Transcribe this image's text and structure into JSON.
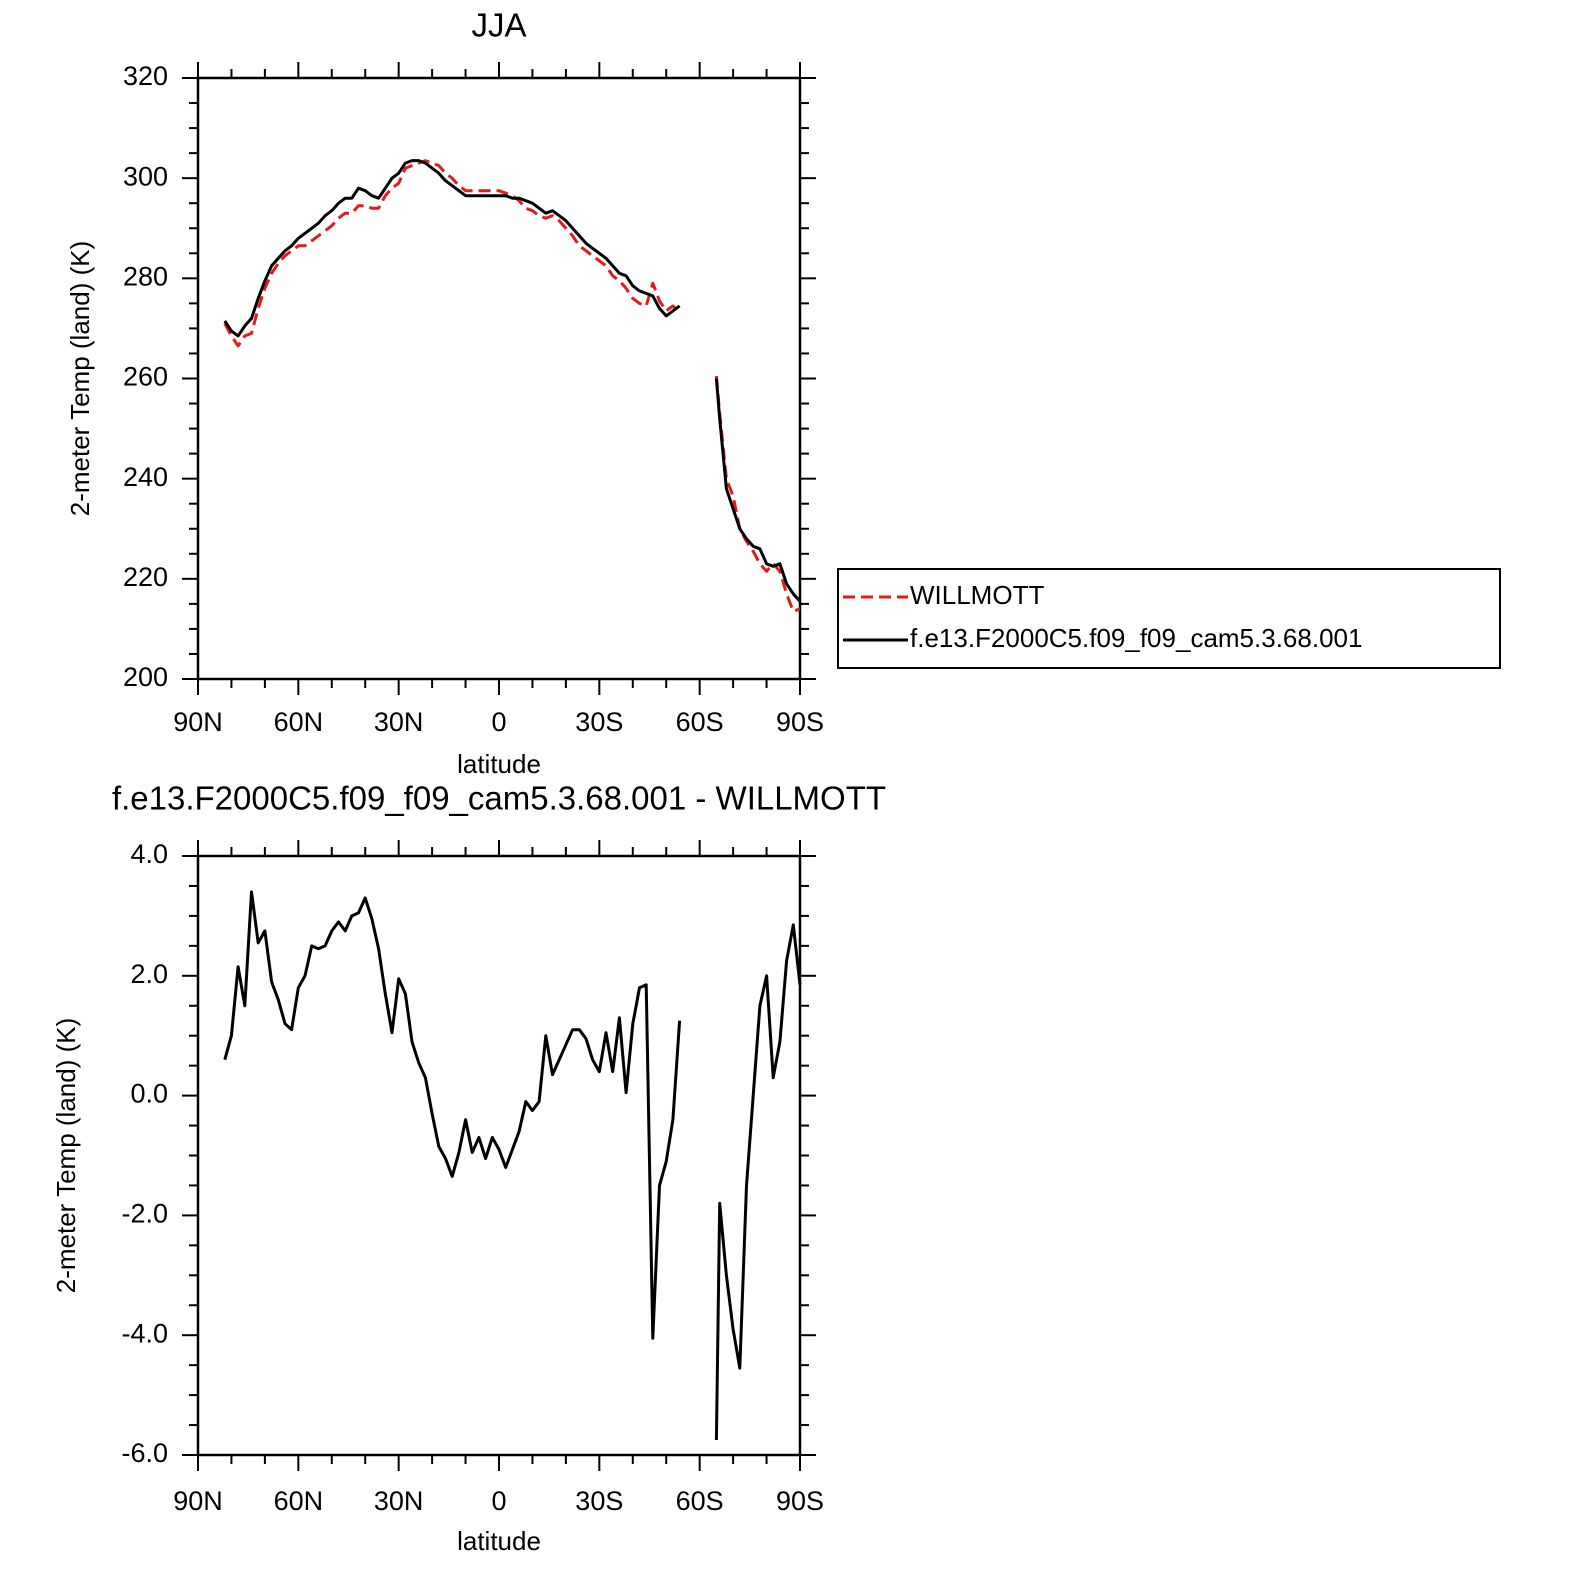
{
  "chart_data": [
    {
      "type": "line",
      "title": "JJA",
      "x_label": "latitude",
      "y_label": "2-meter Temp (land) (K)",
      "x": [
        82,
        80,
        78,
        76,
        74,
        72,
        70,
        68,
        66,
        64,
        62,
        60,
        58,
        56,
        54,
        52,
        50,
        48,
        46,
        44,
        42,
        40,
        38,
        36,
        34,
        32,
        30,
        28,
        26,
        24,
        22,
        20,
        18,
        16,
        14,
        12,
        10,
        8,
        6,
        4,
        2,
        0,
        -2,
        -4,
        -6,
        -8,
        -10,
        -12,
        -14,
        -16,
        -18,
        -20,
        -22,
        -24,
        -26,
        -28,
        -30,
        -32,
        -34,
        -36,
        -38,
        -40,
        -42,
        -44,
        -46,
        -48,
        -50,
        -52,
        -54,
        -60,
        -65,
        -66,
        -68,
        -70,
        -72,
        -74,
        -76,
        -78,
        -80,
        -82,
        -84,
        -86,
        -88,
        -90
      ],
      "series": [
        {
          "name": "WILLMOTT",
          "color": "#e41a1c",
          "dashed": true,
          "values": [
            271,
            268.5,
            266.5,
            268.5,
            269,
            274,
            278,
            281,
            283,
            284.5,
            285.5,
            286.5,
            286.5,
            287.5,
            288.5,
            289.5,
            290.5,
            292,
            293,
            293,
            294.5,
            294.5,
            294,
            294,
            296.5,
            298,
            299,
            302,
            302.5,
            303,
            303.5,
            303,
            302.5,
            301,
            300,
            298.5,
            297.5,
            297.5,
            297.5,
            297.5,
            297.5,
            297.5,
            297,
            296.5,
            295.5,
            294,
            293.5,
            292.5,
            292,
            292.5,
            291.5,
            290,
            288.5,
            286.5,
            285.5,
            284.5,
            283.5,
            282.5,
            280.5,
            279.5,
            278,
            276,
            275,
            274.5,
            279,
            275.5,
            273.5,
            274.5,
            273,
            null,
            260.5,
            253,
            240,
            236.5,
            230,
            227.5,
            225.5,
            223,
            221.5,
            223,
            221.5,
            217,
            213.5,
            214
          ]
        },
        {
          "name": "f.e13.F2000C5.f09_f09_cam5.3.68.001",
          "color": "#000000",
          "dashed": false,
          "values": [
            271.5,
            269.5,
            268.5,
            270.5,
            272,
            276,
            279.5,
            282.5,
            284,
            285.5,
            286.5,
            288,
            289,
            290,
            291,
            292.5,
            293.5,
            295,
            296,
            296,
            298,
            297.5,
            296.5,
            296,
            298,
            300,
            301,
            303,
            303.5,
            303.5,
            303,
            302,
            301,
            299.5,
            298.5,
            297.5,
            296.5,
            296.5,
            296.5,
            296.5,
            296.5,
            296.5,
            296.5,
            296,
            296,
            295.5,
            295,
            294,
            293,
            293.5,
            292.5,
            291.5,
            290,
            288.5,
            287,
            286,
            285,
            284,
            282.5,
            281,
            280.5,
            278.5,
            277.5,
            277,
            276.5,
            274,
            272.5,
            273.5,
            274.5,
            null,
            260,
            252,
            238,
            234,
            230,
            228,
            226.5,
            226,
            223,
            222.5,
            223,
            219,
            217,
            215.5
          ]
        }
      ],
      "xlim": [
        90,
        -90
      ],
      "xticks": [
        {
          "value": 90,
          "label": "90N"
        },
        {
          "value": 60,
          "label": "60N"
        },
        {
          "value": 30,
          "label": "30N"
        },
        0,
        {
          "value": -30,
          "label": "30S"
        },
        {
          "value": -60,
          "label": "60S"
        },
        {
          "value": -90,
          "label": "90S"
        }
      ],
      "ylim": [
        200,
        320
      ],
      "yticks": [
        200,
        220,
        240,
        260,
        280,
        300,
        320
      ],
      "grid": false,
      "legend": "right"
    },
    {
      "type": "line",
      "title": "f.e13.F2000C5.f09_f09_cam5.3.68.001 - WILLMOTT",
      "x_label": "latitude",
      "y_label": "2-meter Temp (land) (K)",
      "x": [
        82,
        80,
        78,
        76,
        74,
        72,
        70,
        68,
        66,
        64,
        62,
        60,
        58,
        56,
        54,
        52,
        50,
        48,
        46,
        44,
        42,
        40,
        38,
        36,
        34,
        32,
        30,
        28,
        26,
        24,
        22,
        20,
        18,
        16,
        14,
        12,
        10,
        8,
        6,
        4,
        2,
        0,
        -2,
        -4,
        -6,
        -8,
        -10,
        -12,
        -14,
        -16,
        -18,
        -20,
        -22,
        -24,
        -26,
        -28,
        -30,
        -32,
        -34,
        -36,
        -38,
        -40,
        -42,
        -44,
        -46,
        -48,
        -50,
        -52,
        -54,
        -60,
        -65,
        -66,
        -68,
        -70,
        -72,
        -74,
        -76,
        -78,
        -80,
        -82,
        -84,
        -86,
        -88,
        -90
      ],
      "color": "#000000",
      "values": [
        0.6,
        1.0,
        2.15,
        1.5,
        3.4,
        2.55,
        2.75,
        1.9,
        1.6,
        1.2,
        1.1,
        1.8,
        2.0,
        2.5,
        2.45,
        2.5,
        2.75,
        2.9,
        2.75,
        3.0,
        3.05,
        3.3,
        2.95,
        2.45,
        1.7,
        1.05,
        1.95,
        1.7,
        0.9,
        0.55,
        0.3,
        -0.3,
        -0.85,
        -1.05,
        -1.35,
        -0.95,
        -0.4,
        -0.95,
        -0.7,
        -1.05,
        -0.7,
        -0.9,
        -1.2,
        -0.9,
        -0.6,
        -0.1,
        -0.25,
        -0.1,
        1.0,
        0.35,
        0.6,
        0.85,
        1.1,
        1.1,
        0.95,
        0.6,
        0.4,
        1.05,
        0.4,
        1.3,
        0.05,
        1.2,
        1.8,
        1.85,
        -4.05,
        -1.5,
        -1.1,
        -0.4,
        1.25,
        null,
        -5.75,
        -1.8,
        -3.0,
        -3.9,
        -4.55,
        -1.5,
        0.0,
        1.5,
        2.0,
        0.3,
        0.9,
        2.25,
        2.85,
        1.85
      ],
      "xlim": [
        90,
        -90
      ],
      "xticks": [
        {
          "value": 90,
          "label": "90N"
        },
        {
          "value": 60,
          "label": "60N"
        },
        {
          "value": 30,
          "label": "30N"
        },
        0,
        {
          "value": -30,
          "label": "30S"
        },
        {
          "value": -60,
          "label": "60S"
        },
        {
          "value": -90,
          "label": "90S"
        }
      ],
      "ylim": [
        -6,
        4
      ],
      "yticks": [
        {
          "value": -6,
          "label": "-6.0"
        },
        {
          "value": -4,
          "label": "-4.0"
        },
        {
          "value": -2,
          "label": "-2.0"
        },
        {
          "value": 0,
          "label": "0.0"
        },
        {
          "value": 2,
          "label": "2.0"
        },
        {
          "value": 4,
          "label": "4.0"
        }
      ],
      "grid": false
    }
  ]
}
